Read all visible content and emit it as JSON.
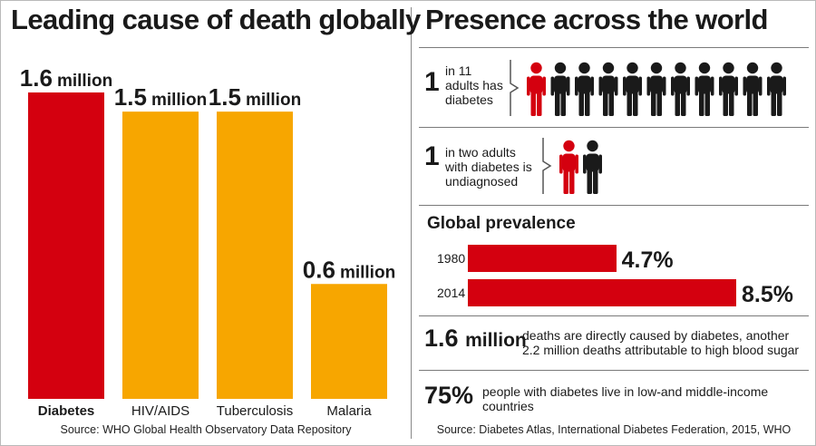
{
  "left": {
    "title": "Leading cause of death globally",
    "source": "Source: WHO Global Health Observatory Data Repository"
  },
  "chart_data": {
    "type": "bar",
    "title": "Leading cause of death globally",
    "categories": [
      "Diabetes",
      "HIV/AIDS",
      "Tuberculosis",
      "Malaria"
    ],
    "values": [
      1.6,
      1.5,
      1.5,
      0.6
    ],
    "value_labels": [
      {
        "num": "1.6",
        "unit": "million"
      },
      {
        "num": "1.5",
        "unit": "million"
      },
      {
        "num": "1.5",
        "unit": "million"
      },
      {
        "num": "0.6",
        "unit": "million"
      }
    ],
    "unit": "million",
    "ylim": [
      0,
      1.6
    ],
    "grid": false,
    "legend": "none",
    "colors": [
      "#d4000f",
      "#f7a600",
      "#f7a600",
      "#f7a600"
    ],
    "highlight_label_color": "#d4000f"
  },
  "right": {
    "title": "Presence across the world",
    "stat1": {
      "number": "1",
      "text_lines": [
        "in 11",
        "adults has",
        "diabetes"
      ],
      "people_total": 11,
      "people_highlighted": 1
    },
    "stat2": {
      "number": "1",
      "text_lines": [
        "in two adults",
        "with diabetes is",
        "undiagnosed"
      ],
      "people_total": 2,
      "people_highlighted": 1
    },
    "prevalence": {
      "title": "Global prevalence",
      "rows": [
        {
          "year": "1980",
          "value": 4.7,
          "label": "4.7%"
        },
        {
          "year": "2014",
          "value": 8.5,
          "label": "8.5%"
        }
      ],
      "max": 8.5
    },
    "deaths": {
      "number": "1.6",
      "unit": "million",
      "text_lines": [
        "deaths are directly caused by diabetes, another",
        "2.2 million deaths attributable to high blood sugar"
      ]
    },
    "income": {
      "number": "75%",
      "text_lines": [
        "people with diabetes live in low-and middle-income",
        "countries"
      ]
    },
    "source": "Source: Diabetes Atlas, International Diabetes Federation, 2015, WHO"
  },
  "colors": {
    "red": "#d4000f",
    "orange": "#f7a600",
    "dark": "#1a1a1a"
  }
}
